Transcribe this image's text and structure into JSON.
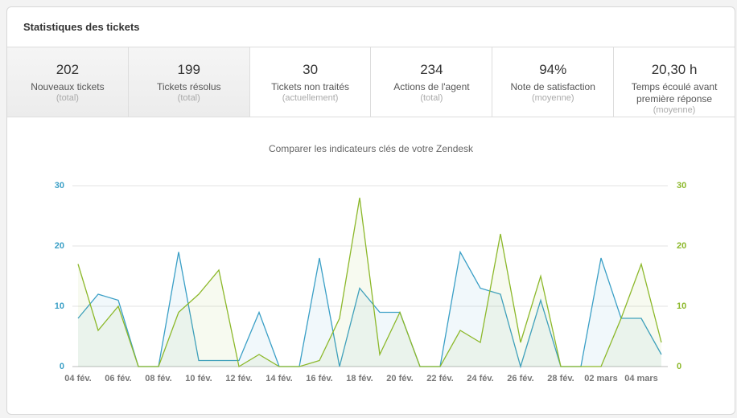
{
  "panel": {
    "title": "Statistiques des tickets"
  },
  "stats": [
    {
      "value": "202",
      "label": "Nouveaux tickets",
      "sub": "(total)"
    },
    {
      "value": "199",
      "label": "Tickets résolus",
      "sub": "(total)"
    },
    {
      "value": "30",
      "label": "Tickets non traités",
      "sub": "(actuellement)"
    },
    {
      "value": "234",
      "label": "Actions de l'agent",
      "sub": "(total)"
    },
    {
      "value": "94%",
      "label": "Note de satisfaction",
      "sub": "(moyenne)"
    },
    {
      "value": "20,30 h",
      "label": "Temps écoulé avant première réponse",
      "sub": "(moyenne)"
    }
  ],
  "chart_data": {
    "type": "line",
    "title": "Comparer les indicateurs clés de votre Zendesk",
    "categories": [
      "04 fév.",
      null,
      "06 fév.",
      null,
      "08 fév.",
      null,
      "10 fév.",
      null,
      "12 fév.",
      null,
      "14 fév.",
      null,
      "16 fév.",
      null,
      "18 fév.",
      null,
      "20 fév.",
      null,
      "22 fév.",
      null,
      "24 fév.",
      null,
      "26 fév.",
      null,
      "28 fév.",
      null,
      "02 mars",
      null,
      "04 mars",
      null
    ],
    "series": [
      {
        "color": "#3a9fc6",
        "values": [
          8,
          12,
          11,
          0,
          0,
          19,
          1,
          1,
          1,
          9,
          0,
          0,
          18,
          0,
          13,
          9,
          9,
          0,
          0,
          19,
          13,
          12,
          0,
          11,
          0,
          0,
          18,
          8,
          8,
          2
        ]
      },
      {
        "color": "#8cb82a",
        "axis": "y2",
        "values": [
          17,
          6,
          10,
          0,
          0,
          9,
          12,
          16,
          0,
          2,
          0,
          0,
          1,
          8,
          28,
          2,
          9,
          0,
          0,
          6,
          4,
          22,
          4,
          15,
          0,
          0,
          0,
          8,
          17,
          4
        ]
      }
    ],
    "ylim": [
      0,
      30
    ],
    "yticks": [
      0,
      10,
      20,
      30
    ],
    "y2lim": [
      0,
      30
    ],
    "y2ticks": [
      0,
      10,
      20,
      30
    ],
    "grid": true
  }
}
